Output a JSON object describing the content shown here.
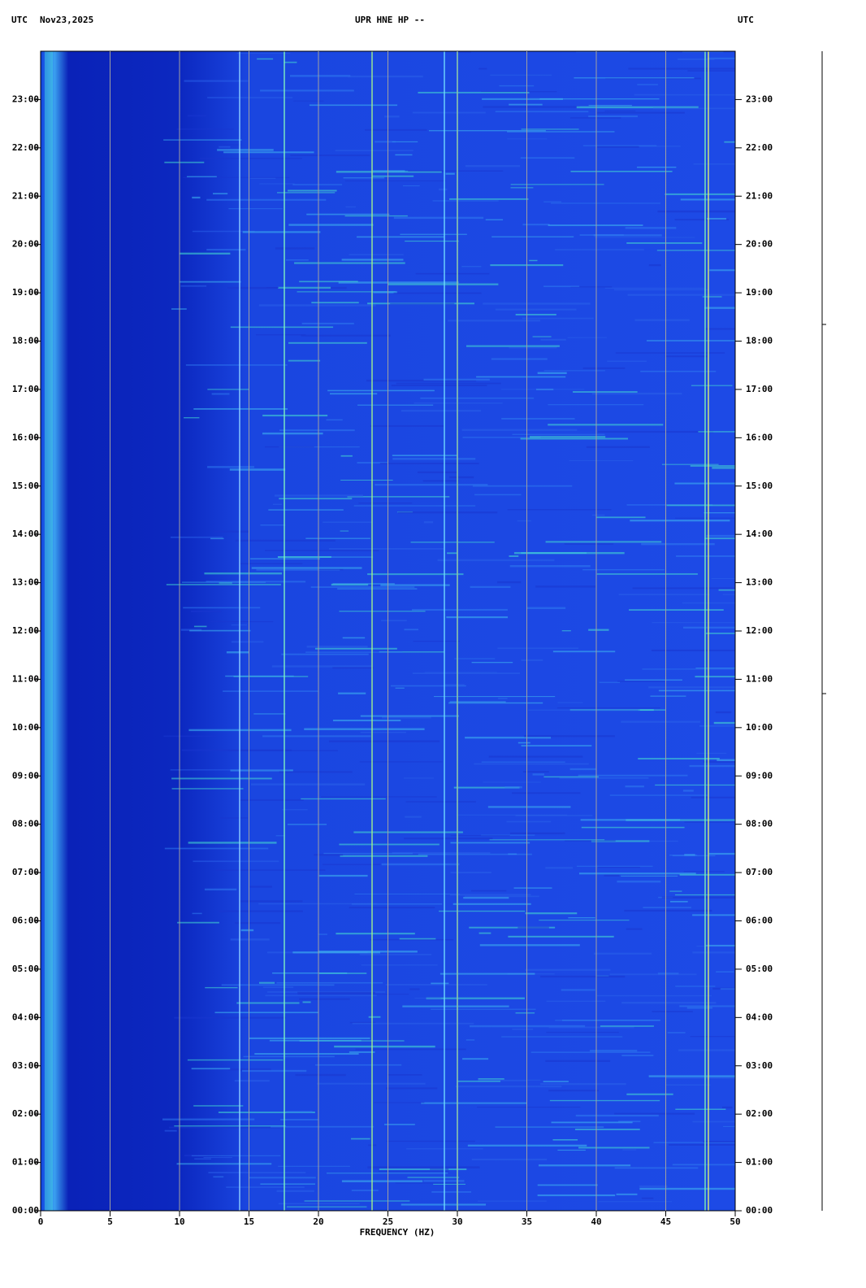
{
  "chart_data": {
    "type": "spectrogram",
    "title": "UPR HNE HP --",
    "left_label": "UTC",
    "date": "Nov23,2025",
    "right_label": "UTC",
    "xlabel": "FREQUENCY (HZ)",
    "xlim": [
      0,
      50
    ],
    "xticks": [
      0,
      5,
      10,
      15,
      20,
      25,
      30,
      35,
      40,
      45,
      50
    ],
    "ylim": [
      0,
      24
    ],
    "yticks": [
      {
        "value": 0,
        "label": "00:00"
      },
      {
        "value": 1,
        "label": "01:00"
      },
      {
        "value": 2,
        "label": "02:00"
      },
      {
        "value": 3,
        "label": "03:00"
      },
      {
        "value": 4,
        "label": "04:00"
      },
      {
        "value": 5,
        "label": "05:00"
      },
      {
        "value": 6,
        "label": "06:00"
      },
      {
        "value": 7,
        "label": "07:00"
      },
      {
        "value": 8,
        "label": "08:00"
      },
      {
        "value": 9,
        "label": "09:00"
      },
      {
        "value": 10,
        "label": "10:00"
      },
      {
        "value": 11,
        "label": "11:00"
      },
      {
        "value": 12,
        "label": "12:00"
      },
      {
        "value": 13,
        "label": "13:00"
      },
      {
        "value": 14,
        "label": "14:00"
      },
      {
        "value": 15,
        "label": "15:00"
      },
      {
        "value": 16,
        "label": "16:00"
      },
      {
        "value": 17,
        "label": "17:00"
      },
      {
        "value": 18,
        "label": "18:00"
      },
      {
        "value": 19,
        "label": "19:00"
      },
      {
        "value": 20,
        "label": "20:00"
      },
      {
        "value": 21,
        "label": "21:00"
      },
      {
        "value": 22,
        "label": "22:00"
      },
      {
        "value": 23,
        "label": "23:00"
      }
    ],
    "grid": true,
    "grid_color": "#a0a0a0"
  }
}
